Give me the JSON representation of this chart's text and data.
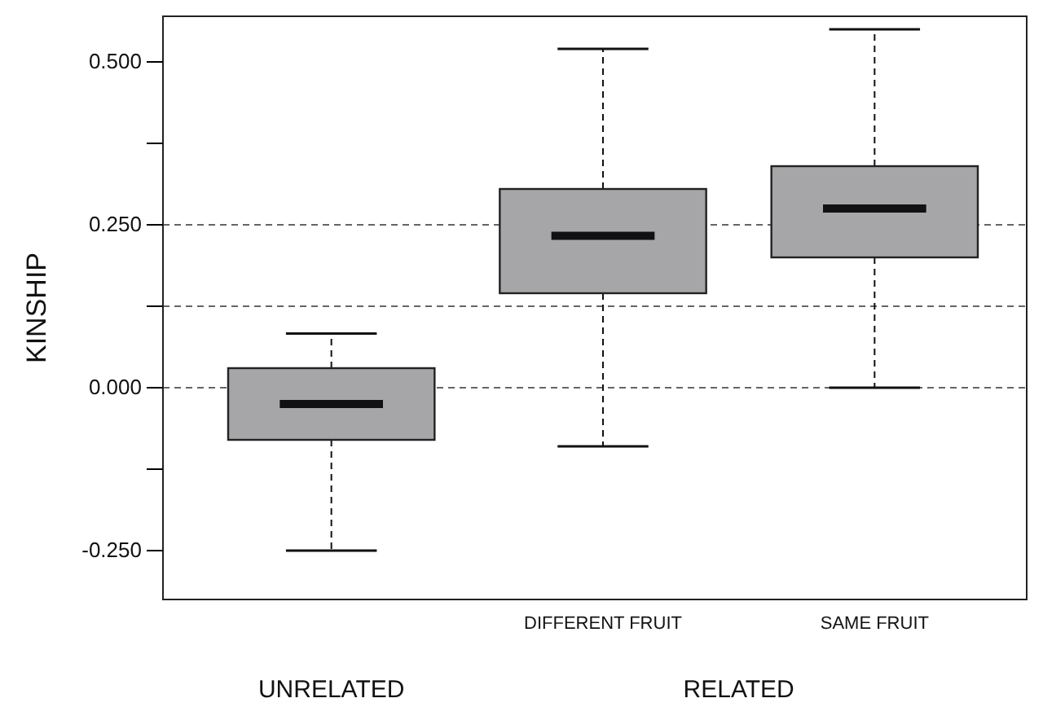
{
  "chart_data": {
    "type": "box",
    "ylabel": "KINSHIP",
    "categories": [
      null,
      "DIFFERENT FRUIT",
      "SAME FRUIT"
    ],
    "boxes": [
      {
        "low": -0.25,
        "q1": -0.08,
        "median": -0.025,
        "q3": 0.03,
        "high": 0.083
      },
      {
        "low": -0.09,
        "q1": 0.145,
        "median": 0.233,
        "q3": 0.305,
        "high": 0.52
      },
      {
        "low": 0.0,
        "q1": 0.2,
        "median": 0.275,
        "q3": 0.34,
        "high": 0.55
      }
    ],
    "color": "#a6a6a8",
    "ylim": [
      -0.325,
      0.57
    ],
    "yticks": [
      {
        "value": -0.25,
        "label": "-0.250"
      },
      {
        "value": -0.125,
        "label": null
      },
      {
        "value": 0,
        "label": "0.000"
      },
      {
        "value": 0.125,
        "label": null
      },
      {
        "value": 0.25,
        "label": "0.250"
      },
      {
        "value": 0.375,
        "label": null
      },
      {
        "value": 0.5,
        "label": "0.500"
      }
    ],
    "ref_lines": [
      {
        "axis": "y",
        "value": 0.25,
        "line_style": "dashed"
      },
      {
        "axis": "y",
        "value": 0.125,
        "line_style": "dashed"
      },
      {
        "axis": "y",
        "value": 0,
        "line_style": "dashed"
      }
    ],
    "annotations": [
      "UNRELATED",
      "RELATED"
    ],
    "grid": false
  }
}
